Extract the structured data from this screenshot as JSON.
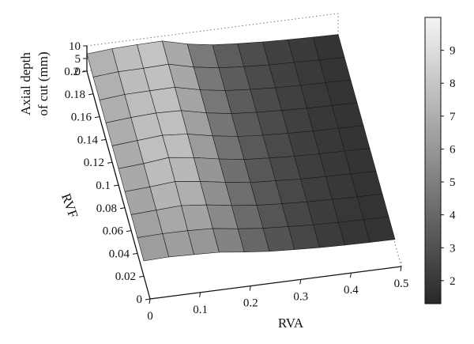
{
  "chart_data": {
    "type": "surface",
    "title": "",
    "x_axis": {
      "label": "RVA",
      "range": [
        0,
        0.5
      ],
      "ticks": [
        "0",
        "0.1",
        "0.2",
        "0.3",
        "0.4",
        "0.5"
      ]
    },
    "y_axis": {
      "label": "RVF",
      "range": [
        0,
        0.2
      ],
      "ticks": [
        "0",
        "0.02",
        "0.04",
        "0.06",
        "0.08",
        "0.1",
        "0.12",
        "0.14",
        "0.16",
        "0.18",
        "0.2"
      ]
    },
    "z_axis": {
      "label_line1": "Axial depth",
      "label_line2": "of cut (mm)",
      "range": [
        0,
        10
      ],
      "ticks": [
        "0",
        "5",
        "10"
      ]
    },
    "colorbar": {
      "range": [
        1.3,
        10
      ],
      "ticks": [
        "2",
        "3",
        "4",
        "5",
        "6",
        "7",
        "8",
        "9"
      ],
      "colormap": "gray"
    },
    "surface": {
      "rva": [
        0.0,
        0.05,
        0.1,
        0.15,
        0.2,
        0.25,
        0.3,
        0.35,
        0.4,
        0.45,
        0.5
      ],
      "rvf": [
        0.02,
        0.04,
        0.06,
        0.08,
        0.1,
        0.12,
        0.14,
        0.16,
        0.18,
        0.2
      ],
      "z": [
        [
          6.0,
          6.3,
          6.0,
          5.6,
          4.4,
          3.4,
          2.8,
          2.3,
          2.0,
          1.8,
          1.7
        ],
        [
          6.2,
          6.5,
          6.4,
          6.0,
          4.6,
          3.5,
          2.9,
          2.3,
          2.0,
          1.8,
          1.7
        ],
        [
          6.3,
          6.8,
          7.3,
          6.3,
          4.8,
          3.6,
          2.9,
          2.4,
          2.1,
          1.8,
          1.7
        ],
        [
          6.4,
          7.0,
          7.8,
          6.6,
          5.0,
          3.6,
          3.0,
          2.4,
          2.1,
          1.9,
          1.7
        ],
        [
          6.5,
          7.2,
          8.3,
          7.0,
          5.2,
          3.7,
          3.0,
          2.4,
          2.1,
          1.9,
          1.7
        ],
        [
          6.5,
          7.3,
          8.1,
          7.3,
          5.3,
          3.8,
          3.0,
          2.5,
          2.1,
          1.9,
          1.7
        ],
        [
          6.6,
          7.4,
          7.9,
          7.6,
          5.4,
          3.8,
          3.1,
          2.5,
          2.1,
          1.9,
          1.7
        ],
        [
          6.6,
          7.5,
          7.7,
          7.8,
          5.5,
          3.9,
          3.1,
          2.5,
          2.2,
          1.9,
          1.7
        ],
        [
          6.7,
          7.5,
          7.6,
          7.9,
          5.5,
          3.9,
          3.1,
          2.5,
          2.2,
          1.9,
          1.7
        ],
        [
          6.8,
          7.6,
          7.9,
          8.1,
          5.6,
          4.0,
          3.2,
          2.6,
          2.2,
          1.9,
          1.7
        ]
      ]
    }
  }
}
